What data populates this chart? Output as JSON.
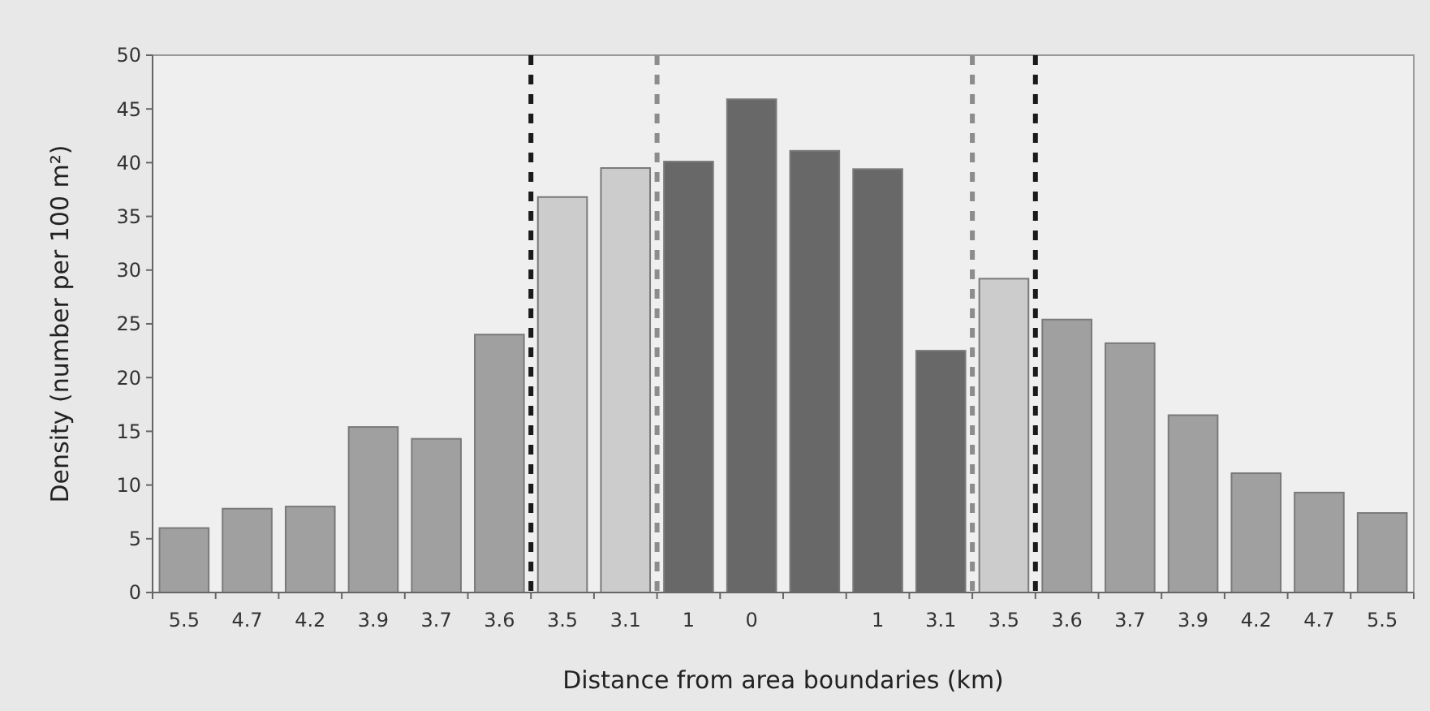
{
  "chart_data": {
    "type": "bar",
    "xlabel": "Distance from area boundaries (km)",
    "ylabel": "Density (number per 100 m²)",
    "categories": [
      "5.5",
      "4.7",
      "4.2",
      "3.9",
      "3.7",
      "3.6",
      "3.5",
      "3.1",
      "1",
      "0",
      null,
      "1",
      "3.1",
      "3.5",
      "3.6",
      "3.7",
      "3.9",
      "4.2",
      "4.7",
      "5.5"
    ],
    "values": [
      6.0,
      7.8,
      8.0,
      15.4,
      14.3,
      24.0,
      36.8,
      39.5,
      40.1,
      45.9,
      41.1,
      39.4,
      22.5,
      29.2,
      25.4,
      23.2,
      16.5,
      11.1,
      9.3,
      7.4
    ],
    "colors": [
      "#a0a0a0",
      "#a0a0a0",
      "#a0a0a0",
      "#a0a0a0",
      "#a0a0a0",
      "#a0a0a0",
      "#cccccc",
      "#cccccc",
      "#686868",
      "#686868",
      "#686868",
      "#686868",
      "#686868",
      "#cccccc",
      "#a0a0a0",
      "#a0a0a0",
      "#a0a0a0",
      "#a0a0a0",
      "#a0a0a0",
      "#a0a0a0"
    ],
    "ylim": [
      0,
      50
    ],
    "yticks": [
      0,
      5,
      10,
      15,
      20,
      25,
      30,
      35,
      40,
      45,
      50
    ]
  }
}
